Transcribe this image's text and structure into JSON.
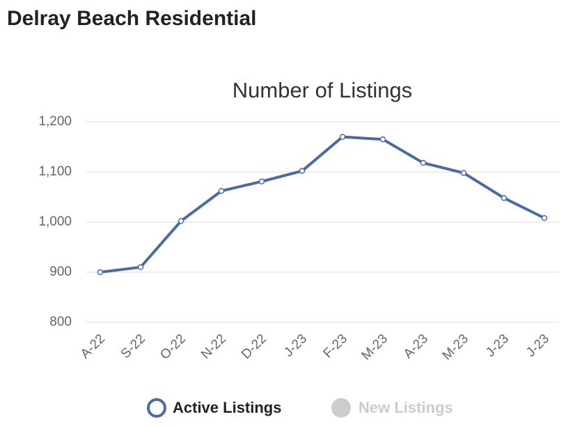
{
  "header": {
    "title": "Delray Beach Residential"
  },
  "chart_data": {
    "type": "line",
    "title": "Number of Listings",
    "categories": [
      "A-22",
      "S-22",
      "O-22",
      "N-22",
      "D-22",
      "J-23",
      "F-23",
      "M-23",
      "A-23",
      "M-23",
      "J-23",
      "J-23"
    ],
    "series": [
      {
        "name": "Active Listings",
        "color": "#4a6aa5",
        "values": [
          900,
          910,
          1002,
          1062,
          1081,
          1102,
          1170,
          1165,
          1118,
          1098,
          1048,
          1008
        ]
      }
    ],
    "hidden_series": [
      {
        "name": "New Listings",
        "color": "#cccccc"
      }
    ],
    "ylim": [
      800,
      1200
    ],
    "yticks": [
      {
        "value": 1200,
        "label": "1,200"
      },
      {
        "value": 1100,
        "label": "1,100"
      },
      {
        "value": 1000,
        "label": "1,000"
      },
      900,
      800
    ],
    "grid": true
  }
}
